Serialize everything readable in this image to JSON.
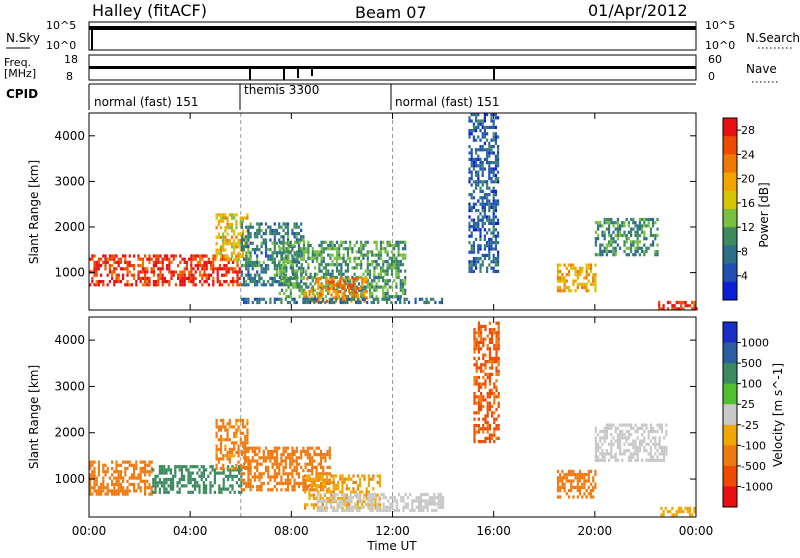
{
  "header": {
    "station": "Halley (fitACF)",
    "beam": "Beam 07",
    "date": "01/Apr/2012"
  },
  "strips": {
    "nsky_label": "N.Sky",
    "nsky_ticks": [
      "10^5",
      "10^0"
    ],
    "nsearch_label": "N.Search",
    "nsearch_ticks": [
      "10^5",
      "10^0"
    ],
    "freq_label": "Freq.",
    "freq_unit": "[MHz]",
    "freq_ticks": [
      "18",
      "8"
    ],
    "nave_label": "Nave",
    "nave_ticks": [
      "60",
      "0"
    ],
    "cpid_label": "CPID",
    "cpid_segments": [
      {
        "label": "normal (fast) 151",
        "start_hour": 0,
        "end_hour": 6
      },
      {
        "label": "themis 3300",
        "start_hour": 6,
        "end_hour": 12
      },
      {
        "label": "normal (fast) 151",
        "start_hour": 12,
        "end_hour": 24
      }
    ]
  },
  "chart_data": [
    {
      "type": "heatmap",
      "title": "Power",
      "xlabel": "Time UT",
      "ylabel": "Slant Range [km]",
      "xlim": [
        0,
        24
      ],
      "ylim": [
        180,
        4500
      ],
      "x_ticks": [
        "00:00",
        "04:00",
        "08:00",
        "12:00",
        "16:00",
        "20:00",
        "00:00"
      ],
      "y_ticks": [
        1000,
        2000,
        3000,
        4000
      ],
      "colorbar": {
        "label": "Power [dB]",
        "ticks": [
          4,
          8,
          12,
          16,
          20,
          24,
          28
        ],
        "range": [
          0,
          30
        ],
        "colors": [
          "#0a1fd6",
          "#1f4fb5",
          "#2d6e8a",
          "#3f8a5c",
          "#78c040",
          "#d8c400",
          "#f0a500",
          "#f07800",
          "#ee4a00",
          "#e81010"
        ]
      },
      "regions": [
        {
          "t0": 0.0,
          "t1": 6.0,
          "r0": 700,
          "r1": 1400,
          "value": 27
        },
        {
          "t0": 5.0,
          "t1": 6.3,
          "r0": 1300,
          "r1": 2300,
          "value": 18
        },
        {
          "t0": 6.0,
          "t1": 8.5,
          "r0": 700,
          "r1": 2100,
          "value": 9
        },
        {
          "t0": 7.5,
          "t1": 12.5,
          "r0": 500,
          "r1": 1700,
          "value": 11
        },
        {
          "t0": 8.5,
          "t1": 11.0,
          "r0": 400,
          "r1": 900,
          "value": 22
        },
        {
          "t0": 6.0,
          "t1": 14.0,
          "r0": 350,
          "r1": 450,
          "value": 8
        },
        {
          "t0": 15.0,
          "t1": 16.2,
          "r0": 1000,
          "r1": 4500,
          "value": 6
        },
        {
          "t0": 18.5,
          "t1": 20.0,
          "r0": 600,
          "r1": 1200,
          "value": 19
        },
        {
          "t0": 20.0,
          "t1": 22.5,
          "r0": 1400,
          "r1": 2200,
          "value": 10
        },
        {
          "t0": 22.5,
          "t1": 24.0,
          "r0": 200,
          "r1": 380,
          "value": 27
        }
      ]
    },
    {
      "type": "heatmap",
      "title": "Velocity",
      "xlabel": "Time UT",
      "ylabel": "Slant Range [km]",
      "xlim": [
        0,
        24
      ],
      "ylim": [
        180,
        4500
      ],
      "x_ticks": [
        "00:00",
        "04:00",
        "08:00",
        "12:00",
        "16:00",
        "20:00",
        "00:00"
      ],
      "y_ticks": [
        1000,
        2000,
        3000,
        4000
      ],
      "colorbar": {
        "label": "Velocity [m s^-1]",
        "ticks": [
          1000,
          500,
          100,
          25,
          -25,
          -100,
          -500,
          -1000
        ],
        "colors": [
          "#e81010",
          "#f04a00",
          "#f07a10",
          "#f0a800",
          "#c8c8c8",
          "#50c030",
          "#3c8a60",
          "#2c5fa0",
          "#1a2fc8"
        ]
      },
      "regions": [
        {
          "t0": 0.0,
          "t1": 2.5,
          "r0": 700,
          "r1": 1400,
          "value": -300
        },
        {
          "t0": 2.5,
          "t1": 6.0,
          "r0": 700,
          "r1": 1300,
          "value": 300
        },
        {
          "t0": 5.0,
          "t1": 6.3,
          "r0": 1200,
          "r1": 2300,
          "value": -150
        },
        {
          "t0": 6.0,
          "t1": 9.5,
          "r0": 800,
          "r1": 1700,
          "value": -200
        },
        {
          "t0": 8.5,
          "t1": 11.5,
          "r0": 400,
          "r1": 1100,
          "value": -80
        },
        {
          "t0": 9.0,
          "t1": 14.0,
          "r0": 300,
          "r1": 700,
          "value": 0
        },
        {
          "t0": 15.2,
          "t1": 16.2,
          "r0": 1800,
          "r1": 4400,
          "value": -600
        },
        {
          "t0": 18.5,
          "t1": 20.0,
          "r0": 600,
          "r1": 1200,
          "value": -300
        },
        {
          "t0": 20.0,
          "t1": 22.8,
          "r0": 1400,
          "r1": 2200,
          "value": 0
        },
        {
          "t0": 22.5,
          "t1": 24.0,
          "r0": 200,
          "r1": 400,
          "value": -60
        }
      ]
    }
  ],
  "colors": {
    "axis": "#000000",
    "background": "#ffffff",
    "dashed_marker": "#999999"
  }
}
